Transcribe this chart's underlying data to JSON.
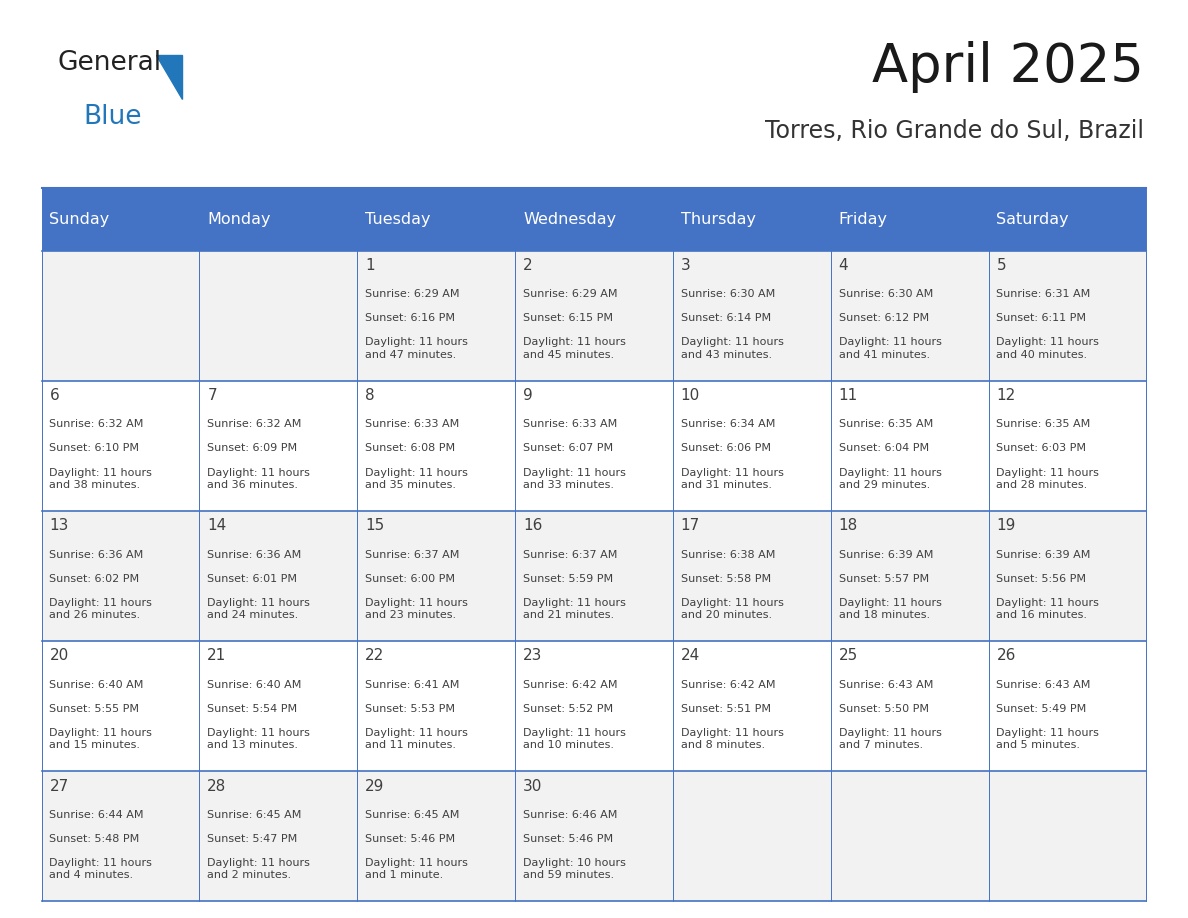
{
  "title": "April 2025",
  "subtitle": "Torres, Rio Grande do Sul, Brazil",
  "header_color": "#4472C4",
  "header_text_color": "#FFFFFF",
  "day_names": [
    "Sunday",
    "Monday",
    "Tuesday",
    "Wednesday",
    "Thursday",
    "Friday",
    "Saturday"
  ],
  "row_bg_colors": [
    "#F2F2F2",
    "#FFFFFF"
  ],
  "border_color": "#4472C4",
  "text_color": "#404040",
  "days": [
    {
      "day": 1,
      "col": 2,
      "row": 0,
      "sunrise": "6:29 AM",
      "sunset": "6:16 PM",
      "daylight": "11 hours\nand 47 minutes."
    },
    {
      "day": 2,
      "col": 3,
      "row": 0,
      "sunrise": "6:29 AM",
      "sunset": "6:15 PM",
      "daylight": "11 hours\nand 45 minutes."
    },
    {
      "day": 3,
      "col": 4,
      "row": 0,
      "sunrise": "6:30 AM",
      "sunset": "6:14 PM",
      "daylight": "11 hours\nand 43 minutes."
    },
    {
      "day": 4,
      "col": 5,
      "row": 0,
      "sunrise": "6:30 AM",
      "sunset": "6:12 PM",
      "daylight": "11 hours\nand 41 minutes."
    },
    {
      "day": 5,
      "col": 6,
      "row": 0,
      "sunrise": "6:31 AM",
      "sunset": "6:11 PM",
      "daylight": "11 hours\nand 40 minutes."
    },
    {
      "day": 6,
      "col": 0,
      "row": 1,
      "sunrise": "6:32 AM",
      "sunset": "6:10 PM",
      "daylight": "11 hours\nand 38 minutes."
    },
    {
      "day": 7,
      "col": 1,
      "row": 1,
      "sunrise": "6:32 AM",
      "sunset": "6:09 PM",
      "daylight": "11 hours\nand 36 minutes."
    },
    {
      "day": 8,
      "col": 2,
      "row": 1,
      "sunrise": "6:33 AM",
      "sunset": "6:08 PM",
      "daylight": "11 hours\nand 35 minutes."
    },
    {
      "day": 9,
      "col": 3,
      "row": 1,
      "sunrise": "6:33 AM",
      "sunset": "6:07 PM",
      "daylight": "11 hours\nand 33 minutes."
    },
    {
      "day": 10,
      "col": 4,
      "row": 1,
      "sunrise": "6:34 AM",
      "sunset": "6:06 PM",
      "daylight": "11 hours\nand 31 minutes."
    },
    {
      "day": 11,
      "col": 5,
      "row": 1,
      "sunrise": "6:35 AM",
      "sunset": "6:04 PM",
      "daylight": "11 hours\nand 29 minutes."
    },
    {
      "day": 12,
      "col": 6,
      "row": 1,
      "sunrise": "6:35 AM",
      "sunset": "6:03 PM",
      "daylight": "11 hours\nand 28 minutes."
    },
    {
      "day": 13,
      "col": 0,
      "row": 2,
      "sunrise": "6:36 AM",
      "sunset": "6:02 PM",
      "daylight": "11 hours\nand 26 minutes."
    },
    {
      "day": 14,
      "col": 1,
      "row": 2,
      "sunrise": "6:36 AM",
      "sunset": "6:01 PM",
      "daylight": "11 hours\nand 24 minutes."
    },
    {
      "day": 15,
      "col": 2,
      "row": 2,
      "sunrise": "6:37 AM",
      "sunset": "6:00 PM",
      "daylight": "11 hours\nand 23 minutes."
    },
    {
      "day": 16,
      "col": 3,
      "row": 2,
      "sunrise": "6:37 AM",
      "sunset": "5:59 PM",
      "daylight": "11 hours\nand 21 minutes."
    },
    {
      "day": 17,
      "col": 4,
      "row": 2,
      "sunrise": "6:38 AM",
      "sunset": "5:58 PM",
      "daylight": "11 hours\nand 20 minutes."
    },
    {
      "day": 18,
      "col": 5,
      "row": 2,
      "sunrise": "6:39 AM",
      "sunset": "5:57 PM",
      "daylight": "11 hours\nand 18 minutes."
    },
    {
      "day": 19,
      "col": 6,
      "row": 2,
      "sunrise": "6:39 AM",
      "sunset": "5:56 PM",
      "daylight": "11 hours\nand 16 minutes."
    },
    {
      "day": 20,
      "col": 0,
      "row": 3,
      "sunrise": "6:40 AM",
      "sunset": "5:55 PM",
      "daylight": "11 hours\nand 15 minutes."
    },
    {
      "day": 21,
      "col": 1,
      "row": 3,
      "sunrise": "6:40 AM",
      "sunset": "5:54 PM",
      "daylight": "11 hours\nand 13 minutes."
    },
    {
      "day": 22,
      "col": 2,
      "row": 3,
      "sunrise": "6:41 AM",
      "sunset": "5:53 PM",
      "daylight": "11 hours\nand 11 minutes."
    },
    {
      "day": 23,
      "col": 3,
      "row": 3,
      "sunrise": "6:42 AM",
      "sunset": "5:52 PM",
      "daylight": "11 hours\nand 10 minutes."
    },
    {
      "day": 24,
      "col": 4,
      "row": 3,
      "sunrise": "6:42 AM",
      "sunset": "5:51 PM",
      "daylight": "11 hours\nand 8 minutes."
    },
    {
      "day": 25,
      "col": 5,
      "row": 3,
      "sunrise": "6:43 AM",
      "sunset": "5:50 PM",
      "daylight": "11 hours\nand 7 minutes."
    },
    {
      "day": 26,
      "col": 6,
      "row": 3,
      "sunrise": "6:43 AM",
      "sunset": "5:49 PM",
      "daylight": "11 hours\nand 5 minutes."
    },
    {
      "day": 27,
      "col": 0,
      "row": 4,
      "sunrise": "6:44 AM",
      "sunset": "5:48 PM",
      "daylight": "11 hours\nand 4 minutes."
    },
    {
      "day": 28,
      "col": 1,
      "row": 4,
      "sunrise": "6:45 AM",
      "sunset": "5:47 PM",
      "daylight": "11 hours\nand 2 minutes."
    },
    {
      "day": 29,
      "col": 2,
      "row": 4,
      "sunrise": "6:45 AM",
      "sunset": "5:46 PM",
      "daylight": "11 hours\nand 1 minute."
    },
    {
      "day": 30,
      "col": 3,
      "row": 4,
      "sunrise": "6:46 AM",
      "sunset": "5:46 PM",
      "daylight": "10 hours\nand 59 minutes."
    }
  ],
  "num_rows": 5,
  "num_cols": 7
}
